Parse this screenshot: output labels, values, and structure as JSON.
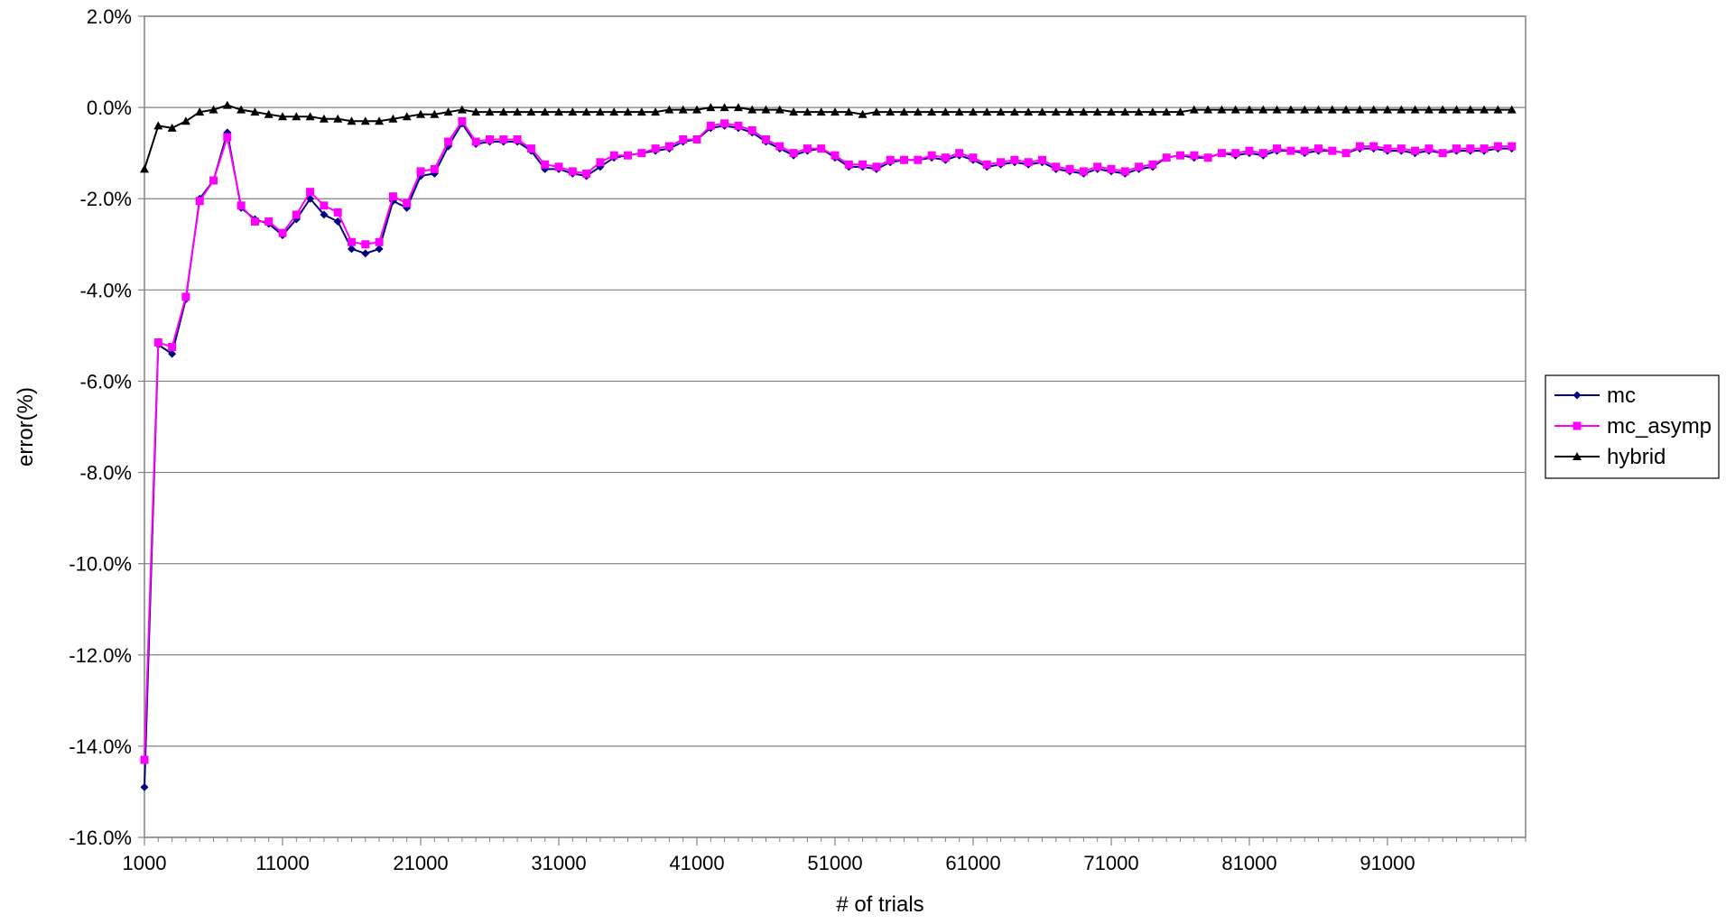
{
  "chart_data": {
    "type": "line",
    "title": "",
    "xlabel": "# of trials",
    "ylabel": "error(%)",
    "xlim": [
      1000,
      101000
    ],
    "ylim": [
      -16.0,
      2.0
    ],
    "y_tick_labels": [
      "2.0%",
      "0.0%",
      "-2.0%",
      "-4.0%",
      "-6.0%",
      "-8.0%",
      "-10.0%",
      "-12.0%",
      "-14.0%",
      "-16.0%"
    ],
    "y_tick_values": [
      2,
      0,
      -2,
      -4,
      -6,
      -8,
      -10,
      -12,
      -14,
      -16
    ],
    "x_tick_labels": [
      "1000",
      "11000",
      "21000",
      "31000",
      "41000",
      "51000",
      "61000",
      "71000",
      "81000",
      "91000"
    ],
    "x_tick_values": [
      1000,
      11000,
      21000,
      31000,
      41000,
      51000,
      61000,
      71000,
      81000,
      91000
    ],
    "x_start": 1000,
    "x_step": 1000,
    "grid": "horizontal",
    "legend_position": "right",
    "series": [
      {
        "name": "mc",
        "color": "#000080",
        "marker": "diamond",
        "values": [
          -14.9,
          -5.2,
          -5.4,
          -4.2,
          -2.0,
          -1.6,
          -0.55,
          -2.2,
          -2.45,
          -2.55,
          -2.8,
          -2.45,
          -2.0,
          -2.35,
          -2.5,
          -3.1,
          -3.2,
          -3.1,
          -2.05,
          -2.2,
          -1.5,
          -1.45,
          -0.85,
          -0.35,
          -0.8,
          -0.75,
          -0.75,
          -0.75,
          -0.95,
          -1.35,
          -1.35,
          -1.45,
          -1.5,
          -1.3,
          -1.1,
          -1.05,
          -1.0,
          -0.95,
          -0.9,
          -0.75,
          -0.7,
          -0.45,
          -0.4,
          -0.45,
          -0.55,
          -0.75,
          -0.9,
          -1.05,
          -0.95,
          -0.9,
          -1.1,
          -1.3,
          -1.3,
          -1.35,
          -1.2,
          -1.15,
          -1.15,
          -1.1,
          -1.15,
          -1.05,
          -1.15,
          -1.3,
          -1.25,
          -1.2,
          -1.25,
          -1.2,
          -1.35,
          -1.4,
          -1.45,
          -1.35,
          -1.4,
          -1.45,
          -1.35,
          -1.3,
          -1.1,
          -1.05,
          -1.1,
          -1.1,
          -1.0,
          -1.05,
          -1.0,
          -1.05,
          -0.95,
          -0.95,
          -1.0,
          -0.95,
          -0.95,
          -1.0,
          -0.9,
          -0.9,
          -0.95,
          -0.95,
          -1.0,
          -0.95,
          -1.0,
          -0.95,
          -0.95,
          -0.95,
          -0.9,
          -0.9
        ]
      },
      {
        "name": "mc_asymp",
        "color": "#ff00ff",
        "marker": "square",
        "values": [
          -14.3,
          -5.15,
          -5.25,
          -4.15,
          -2.05,
          -1.6,
          -0.65,
          -2.15,
          -2.5,
          -2.5,
          -2.75,
          -2.35,
          -1.85,
          -2.15,
          -2.3,
          -2.95,
          -3.0,
          -2.95,
          -1.95,
          -2.1,
          -1.4,
          -1.35,
          -0.75,
          -0.3,
          -0.75,
          -0.7,
          -0.7,
          -0.7,
          -0.9,
          -1.25,
          -1.3,
          -1.4,
          -1.45,
          -1.2,
          -1.05,
          -1.05,
          -1.0,
          -0.9,
          -0.85,
          -0.7,
          -0.7,
          -0.4,
          -0.35,
          -0.4,
          -0.5,
          -0.7,
          -0.85,
          -1.0,
          -0.9,
          -0.9,
          -1.05,
          -1.25,
          -1.25,
          -1.3,
          -1.15,
          -1.15,
          -1.15,
          -1.05,
          -1.1,
          -1.0,
          -1.1,
          -1.25,
          -1.2,
          -1.15,
          -1.2,
          -1.15,
          -1.3,
          -1.35,
          -1.4,
          -1.3,
          -1.35,
          -1.4,
          -1.3,
          -1.25,
          -1.1,
          -1.05,
          -1.05,
          -1.1,
          -1.0,
          -1.0,
          -0.95,
          -1.0,
          -0.9,
          -0.95,
          -0.95,
          -0.9,
          -0.95,
          -1.0,
          -0.85,
          -0.85,
          -0.9,
          -0.9,
          -0.95,
          -0.9,
          -1.0,
          -0.9,
          -0.9,
          -0.9,
          -0.85,
          -0.85
        ]
      },
      {
        "name": "hybrid",
        "color": "#000000",
        "marker": "triangle",
        "values": [
          -1.35,
          -0.4,
          -0.45,
          -0.3,
          -0.1,
          -0.05,
          0.05,
          -0.05,
          -0.1,
          -0.15,
          -0.2,
          -0.2,
          -0.2,
          -0.25,
          -0.25,
          -0.3,
          -0.3,
          -0.3,
          -0.25,
          -0.2,
          -0.15,
          -0.15,
          -0.1,
          -0.05,
          -0.1,
          -0.1,
          -0.1,
          -0.1,
          -0.1,
          -0.1,
          -0.1,
          -0.1,
          -0.1,
          -0.1,
          -0.1,
          -0.1,
          -0.1,
          -0.1,
          -0.05,
          -0.05,
          -0.05,
          0.0,
          0.0,
          0.0,
          -0.05,
          -0.05,
          -0.05,
          -0.1,
          -0.1,
          -0.1,
          -0.1,
          -0.1,
          -0.15,
          -0.1,
          -0.1,
          -0.1,
          -0.1,
          -0.1,
          -0.1,
          -0.1,
          -0.1,
          -0.1,
          -0.1,
          -0.1,
          -0.1,
          -0.1,
          -0.1,
          -0.1,
          -0.1,
          -0.1,
          -0.1,
          -0.1,
          -0.1,
          -0.1,
          -0.1,
          -0.1,
          -0.05,
          -0.05,
          -0.05,
          -0.05,
          -0.05,
          -0.05,
          -0.05,
          -0.05,
          -0.05,
          -0.05,
          -0.05,
          -0.05,
          -0.05,
          -0.05,
          -0.05,
          -0.05,
          -0.05,
          -0.05,
          -0.05,
          -0.05,
          -0.05,
          -0.05,
          -0.05,
          -0.05
        ]
      }
    ]
  }
}
